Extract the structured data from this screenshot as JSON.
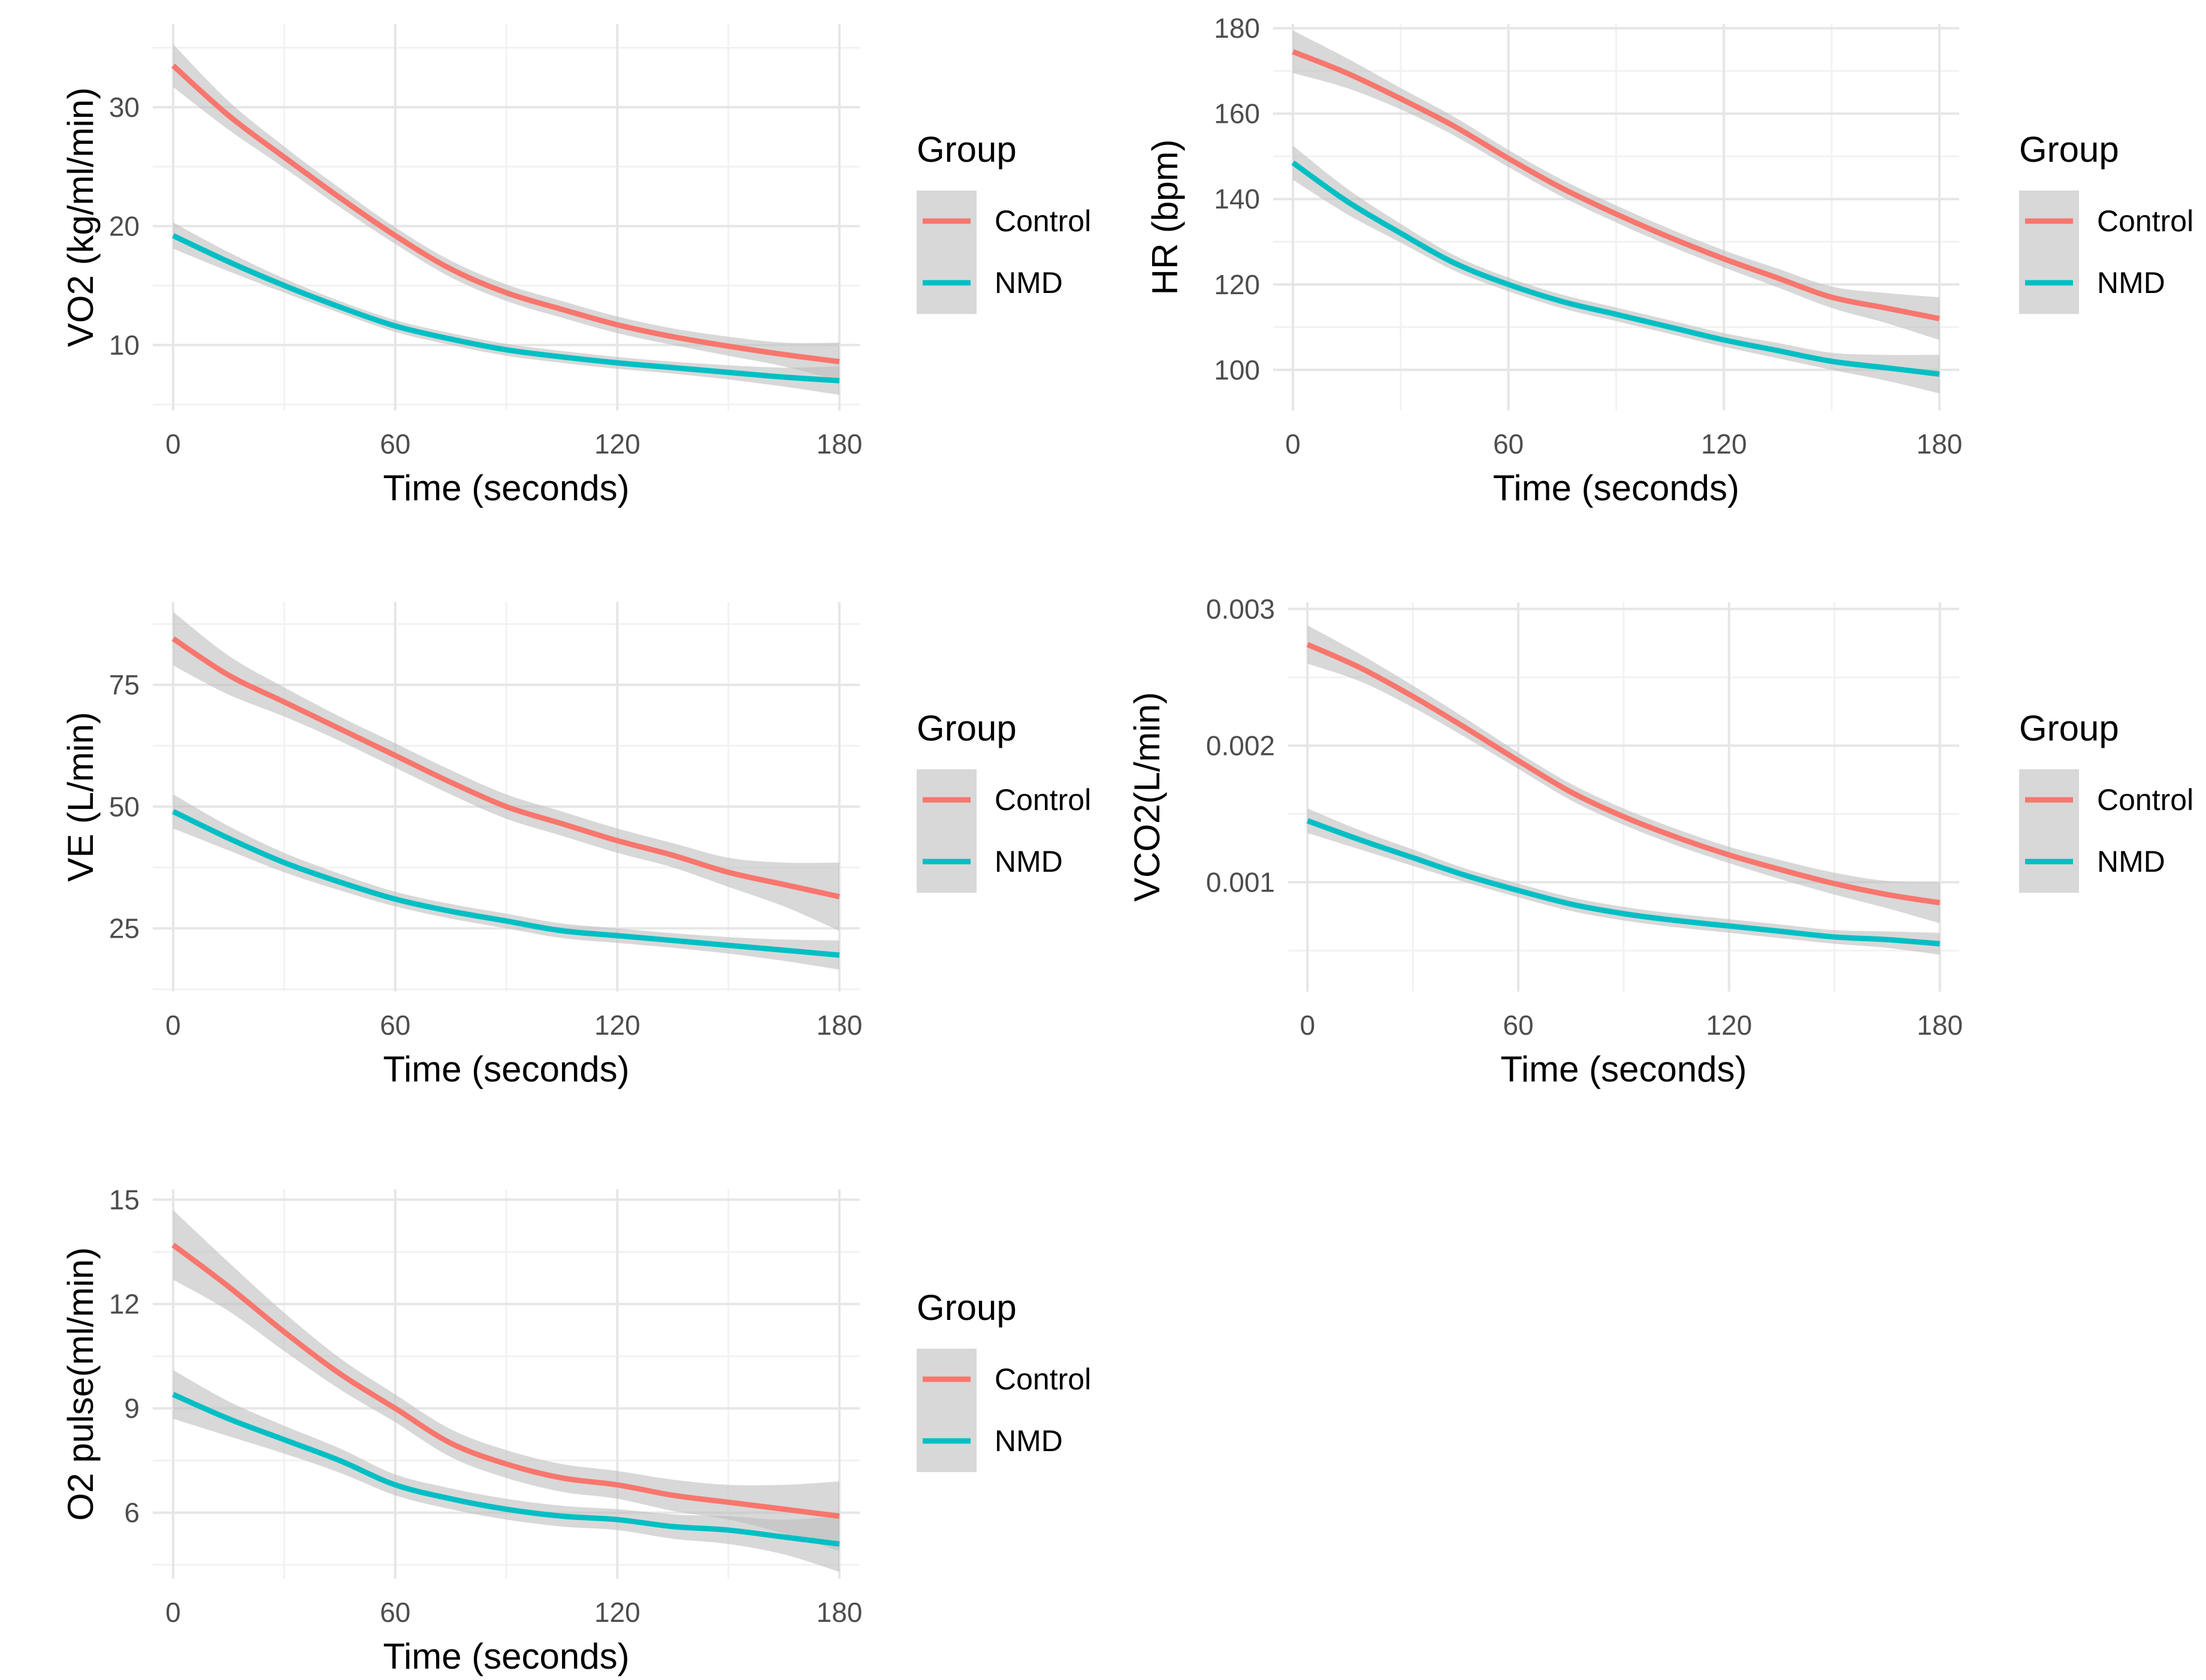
{
  "legend": {
    "title": "Group",
    "items": [
      {
        "label": "Control",
        "color": "#F8766D"
      },
      {
        "label": "NMD",
        "color": "#00BFC4"
      }
    ]
  },
  "colors": {
    "band": "#BEBEBE",
    "grid_major": "#E6E6E6",
    "grid_minor": "#F2F2F2",
    "axis_text": "#4D4D4D",
    "axis_title": "#000000"
  },
  "chart_data": [
    {
      "id": "vo2",
      "type": "line",
      "xlabel": "Time (seconds)",
      "ylabel": "VO2 (kg/ml/min)",
      "xlim": [
        -5.5,
        185.5
      ],
      "ylim": [
        4.5,
        37
      ],
      "xticks": [
        0,
        60,
        120,
        180
      ],
      "xtick_labels": [
        "0",
        "60",
        "120",
        "180"
      ],
      "yticks": [
        10,
        20,
        30
      ],
      "ytick_labels": [
        "10",
        "20",
        "30"
      ],
      "grid": true,
      "legend_position": "right",
      "x": [
        0,
        15,
        30,
        45,
        60,
        75,
        90,
        105,
        120,
        135,
        150,
        165,
        180
      ],
      "series": [
        {
          "name": "Control",
          "values": [
            33.5,
            29.3,
            25.8,
            22.4,
            19.2,
            16.4,
            14.4,
            13.0,
            11.7,
            10.7,
            9.9,
            9.2,
            8.6
          ],
          "band": [
            1.8,
            1.2,
            0.9,
            0.8,
            0.7,
            0.7,
            0.7,
            0.7,
            0.7,
            0.7,
            0.8,
            1.0,
            1.6
          ]
        },
        {
          "name": "NMD",
          "values": [
            19.2,
            17.0,
            15.0,
            13.2,
            11.6,
            10.5,
            9.6,
            9.0,
            8.5,
            8.1,
            7.7,
            7.3,
            7.0
          ],
          "band": [
            1.1,
            0.8,
            0.6,
            0.5,
            0.5,
            0.5,
            0.5,
            0.5,
            0.5,
            0.5,
            0.6,
            0.8,
            1.2
          ]
        }
      ]
    },
    {
      "id": "hr",
      "type": "line",
      "xlabel": "Time (seconds)",
      "ylabel": "HR (bpm)",
      "xlim": [
        -5.5,
        185.5
      ],
      "ylim": [
        90.5,
        181
      ],
      "xticks": [
        0,
        60,
        120,
        180
      ],
      "xtick_labels": [
        "0",
        "60",
        "120",
        "180"
      ],
      "yticks": [
        100,
        120,
        140,
        160,
        180
      ],
      "ytick_labels": [
        "100",
        "120",
        "140",
        "160",
        "180"
      ],
      "grid": true,
      "legend_position": "right",
      "x": [
        0,
        15,
        30,
        45,
        60,
        75,
        90,
        105,
        120,
        135,
        150,
        165,
        180
      ],
      "series": [
        {
          "name": "Control",
          "values": [
            174.5,
            169.5,
            163.5,
            157.0,
            149.5,
            142.5,
            136.5,
            131.0,
            126.0,
            121.5,
            117.0,
            114.5,
            112.0
          ],
          "band": [
            5.0,
            3.5,
            2.5,
            2.2,
            2.0,
            2.0,
            2.0,
            2.0,
            2.0,
            2.2,
            2.5,
            3.5,
            5.0
          ]
        },
        {
          "name": "NMD",
          "values": [
            148.5,
            139.5,
            132.0,
            125.0,
            120.0,
            116.0,
            113.0,
            110.0,
            107.0,
            104.5,
            102.0,
            100.5,
            99.0
          ],
          "band": [
            4.0,
            3.0,
            2.2,
            1.8,
            1.6,
            1.6,
            1.6,
            1.6,
            1.6,
            1.8,
            2.0,
            3.0,
            4.5
          ]
        }
      ]
    },
    {
      "id": "ve",
      "type": "line",
      "xlabel": "Time (seconds)",
      "ylabel": "VE (L/min)",
      "xlim": [
        -5.5,
        185.5
      ],
      "ylim": [
        12,
        92
      ],
      "xticks": [
        0,
        60,
        120,
        180
      ],
      "xtick_labels": [
        "0",
        "60",
        "120",
        "180"
      ],
      "yticks": [
        25,
        50,
        75
      ],
      "ytick_labels": [
        "25",
        "50",
        "75"
      ],
      "grid": true,
      "legend_position": "right",
      "x": [
        0,
        15,
        30,
        45,
        60,
        75,
        90,
        105,
        120,
        135,
        150,
        165,
        180
      ],
      "series": [
        {
          "name": "Control",
          "values": [
            84.5,
            77.0,
            71.5,
            66.0,
            60.5,
            55.0,
            50.0,
            46.5,
            43.0,
            40.0,
            36.5,
            34.0,
            31.5
          ],
          "band": [
            5.5,
            4.0,
            3.0,
            2.5,
            2.5,
            2.5,
            2.5,
            2.5,
            2.5,
            2.5,
            3.0,
            4.5,
            7.0
          ]
        },
        {
          "name": "NMD",
          "values": [
            49.0,
            43.5,
            38.5,
            34.5,
            31.0,
            28.5,
            26.5,
            24.5,
            23.5,
            22.5,
            21.5,
            20.5,
            19.5
          ],
          "band": [
            3.5,
            2.5,
            2.0,
            1.7,
            1.5,
            1.5,
            1.5,
            1.5,
            1.5,
            1.5,
            1.7,
            2.2,
            3.0
          ]
        }
      ]
    },
    {
      "id": "vco2",
      "type": "line",
      "xlabel": "Time (seconds)",
      "ylabel": "VCO2(L/min)",
      "xlim": [
        -5.5,
        185.5
      ],
      "ylim": [
        0.0002,
        0.00305
      ],
      "xticks": [
        0,
        60,
        120,
        180
      ],
      "xtick_labels": [
        "0",
        "60",
        "120",
        "180"
      ],
      "yticks": [
        0.001,
        0.002,
        0.003
      ],
      "ytick_labels": [
        "0.001",
        "0.002",
        "0.003"
      ],
      "grid": true,
      "legend_position": "right",
      "x": [
        0,
        15,
        30,
        45,
        60,
        75,
        90,
        105,
        120,
        135,
        150,
        165,
        180
      ],
      "series": [
        {
          "name": "Control",
          "values": [
            0.00274,
            0.00257,
            0.00236,
            0.00213,
            0.00189,
            0.00166,
            0.00148,
            0.00133,
            0.0012,
            0.00109,
            0.00099,
            0.00091,
            0.00085
          ],
          "band": [
            0.00014,
            0.0001,
            8e-05,
            7e-05,
            6e-05,
            6e-05,
            6e-05,
            6e-05,
            6e-05,
            7e-05,
            8e-05,
            0.0001,
            0.00015
          ]
        },
        {
          "name": "NMD",
          "values": [
            0.00145,
            0.00131,
            0.00118,
            0.00105,
            0.00094,
            0.00084,
            0.00077,
            0.00072,
            0.00068,
            0.00064,
            0.0006,
            0.00058,
            0.00055
          ],
          "band": [
            9e-05,
            7e-05,
            6e-05,
            5e-05,
            5e-05,
            5e-05,
            5e-05,
            5e-05,
            5e-05,
            5e-05,
            5e-05,
            6e-05,
            8e-05
          ]
        }
      ]
    },
    {
      "id": "o2pulse",
      "type": "line",
      "xlabel": "Time (seconds)",
      "ylabel": "O2 pulse(ml/min)",
      "xlim": [
        -5.5,
        185.5
      ],
      "ylim": [
        4.1,
        15.3
      ],
      "xticks": [
        0,
        60,
        120,
        180
      ],
      "xtick_labels": [
        "0",
        "60",
        "120",
        "180"
      ],
      "yticks": [
        6,
        9,
        12,
        15
      ],
      "ytick_labels": [
        "6",
        "9",
        "12",
        "15"
      ],
      "grid": true,
      "legend_position": "right",
      "x": [
        0,
        15,
        30,
        45,
        60,
        75,
        90,
        105,
        120,
        135,
        150,
        165,
        180
      ],
      "series": [
        {
          "name": "Control",
          "values": [
            13.7,
            12.5,
            11.2,
            10.0,
            9.0,
            8.0,
            7.4,
            7.0,
            6.8,
            6.5,
            6.3,
            6.1,
            5.9
          ],
          "band": [
            1.0,
            0.7,
            0.55,
            0.45,
            0.4,
            0.4,
            0.4,
            0.4,
            0.4,
            0.45,
            0.5,
            0.7,
            1.0
          ]
        },
        {
          "name": "NMD",
          "values": [
            9.4,
            8.7,
            8.1,
            7.5,
            6.8,
            6.4,
            6.1,
            5.9,
            5.8,
            5.6,
            5.5,
            5.3,
            5.1
          ],
          "band": [
            0.7,
            0.5,
            0.4,
            0.35,
            0.3,
            0.3,
            0.3,
            0.3,
            0.3,
            0.35,
            0.4,
            0.5,
            0.8
          ]
        }
      ]
    }
  ]
}
